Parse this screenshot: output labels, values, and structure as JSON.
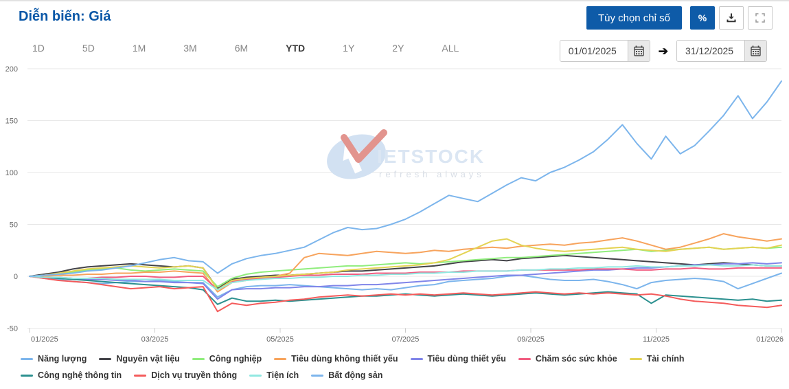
{
  "header": {
    "title": "Diễn biến: Giá",
    "options_button": "Tùy chọn chỉ số",
    "percent_button": "%",
    "icons": {
      "download": "download-icon",
      "fullscreen": "fullscreen-icon",
      "calendar": "calendar-icon",
      "arrow_right_glyph": "➔"
    }
  },
  "ranges": {
    "options": [
      "1D",
      "5D",
      "1M",
      "3M",
      "6M",
      "YTD",
      "1Y",
      "2Y",
      "ALL"
    ],
    "selected": "YTD"
  },
  "date_range": {
    "from": "01/01/2025",
    "to": "31/12/2025"
  },
  "watermark": {
    "brand_text": "IETSTOCK",
    "tagline": "refresh always"
  },
  "colors": {
    "brand_blue": "#0e5ba8",
    "title_blue": "#0a57a7",
    "grid_line": "#e7e7e7",
    "axis_label": "#666666"
  },
  "chart_data": {
    "type": "line",
    "title": "Diễn biến: Giá",
    "x_unit": "weeks since 2025-01-01 (index 0..52, one year)",
    "x_axis": {
      "tick_labels": [
        "01/2025",
        "03/2025",
        "05/2025",
        "07/2025",
        "09/2025",
        "11/2025",
        "01/2026"
      ]
    },
    "y_axis": {
      "min": -50,
      "max": 200,
      "tick_interval": 50,
      "tick_labels": [
        "200",
        "150",
        "100",
        "50",
        "0",
        "-50"
      ]
    },
    "grid": true,
    "legend_position": "bottom",
    "series": [
      {
        "name": "Năng lượng",
        "color": "#7cb5ec",
        "values": [
          0,
          -2,
          -3,
          -5,
          -6,
          -7,
          -6,
          -5,
          -5,
          -4,
          -5,
          -6,
          -6,
          -20,
          -13,
          -10,
          -9,
          -9,
          -8,
          -9,
          -10,
          -11,
          -12,
          -13,
          -12,
          -13,
          -11,
          -9,
          -8,
          -5,
          -4,
          -3,
          -2,
          0,
          1,
          -1,
          -3,
          -4,
          -4,
          -3,
          -5,
          -8,
          -12,
          -6,
          -4,
          -3,
          -2,
          -3,
          -5,
          -12,
          -7,
          -2,
          3
        ]
      },
      {
        "name": "Nguyên vật liệu",
        "color": "#434348",
        "values": [
          0,
          2,
          4,
          7,
          9,
          10,
          11,
          12,
          11,
          10,
          9,
          10,
          8,
          -12,
          -3,
          -1,
          0,
          1,
          1,
          2,
          3,
          4,
          5,
          5,
          6,
          7,
          8,
          9,
          10,
          12,
          14,
          15,
          16,
          15,
          17,
          18,
          19,
          20,
          19,
          18,
          17,
          16,
          15,
          14,
          13,
          12,
          11,
          12,
          13,
          12,
          11,
          10,
          10
        ]
      },
      {
        "name": "Công nghiệp",
        "color": "#90ed7d",
        "values": [
          0,
          1,
          2,
          4,
          6,
          7,
          8,
          6,
          5,
          6,
          7,
          6,
          5,
          -10,
          -2,
          2,
          4,
          5,
          6,
          7,
          8,
          9,
          10,
          10,
          11,
          12,
          13,
          12,
          13,
          14,
          15,
          16,
          17,
          18,
          18,
          19,
          20,
          21,
          22,
          23,
          24,
          25,
          26,
          24,
          25,
          26,
          27,
          28,
          26,
          27,
          28,
          27,
          28
        ]
      },
      {
        "name": "Tiêu dùng không thiết yếu",
        "color": "#f7a35c",
        "values": [
          0,
          0,
          1,
          1,
          2,
          2,
          3,
          3,
          4,
          4,
          5,
          4,
          3,
          -15,
          -6,
          -4,
          -2,
          0,
          3,
          18,
          22,
          21,
          20,
          22,
          24,
          23,
          22,
          23,
          25,
          24,
          26,
          27,
          28,
          27,
          29,
          30,
          31,
          30,
          32,
          33,
          35,
          37,
          34,
          30,
          26,
          28,
          32,
          36,
          41,
          38,
          36,
          34,
          36
        ]
      },
      {
        "name": "Tiêu dùng thiết yếu",
        "color": "#8085e9",
        "values": [
          0,
          -1,
          -2,
          -2,
          -3,
          -3,
          -4,
          -4,
          -5,
          -5,
          -6,
          -6,
          -7,
          -22,
          -13,
          -12,
          -12,
          -11,
          -11,
          -10,
          -10,
          -9,
          -9,
          -8,
          -8,
          -7,
          -6,
          -5,
          -4,
          -3,
          -2,
          -1,
          0,
          1,
          1,
          2,
          3,
          4,
          5,
          6,
          6,
          7,
          8,
          8,
          9,
          10,
          11,
          11,
          12,
          12,
          13,
          12,
          13
        ]
      },
      {
        "name": "Chăm sóc sức khỏe",
        "color": "#f15c80",
        "values": [
          0,
          -1,
          -1,
          -2,
          -2,
          -1,
          -1,
          0,
          0,
          -1,
          -1,
          0,
          0,
          -13,
          -5,
          -3,
          -2,
          -1,
          0,
          1,
          1,
          2,
          2,
          2,
          3,
          3,
          3,
          4,
          4,
          4,
          5,
          5,
          5,
          5,
          6,
          6,
          6,
          6,
          6,
          7,
          7,
          7,
          6,
          6,
          7,
          7,
          8,
          7,
          7,
          8,
          8,
          8,
          8
        ]
      },
      {
        "name": "Tài chính",
        "color": "#e4d354",
        "values": [
          0,
          1,
          3,
          5,
          7,
          8,
          9,
          10,
          9,
          8,
          9,
          10,
          8,
          -13,
          -4,
          -2,
          -1,
          0,
          1,
          2,
          3,
          4,
          6,
          7,
          8,
          9,
          10,
          11,
          13,
          16,
          22,
          28,
          34,
          36,
          30,
          27,
          25,
          24,
          25,
          26,
          27,
          28,
          26,
          25,
          24,
          26,
          27,
          28,
          26,
          27,
          28,
          27,
          30
        ]
      },
      {
        "name": "Công nghệ thông tin",
        "color": "#2b908f",
        "values": [
          0,
          -1,
          -2,
          -3,
          -4,
          -5,
          -6,
          -7,
          -8,
          -9,
          -10,
          -11,
          -13,
          -27,
          -21,
          -24,
          -24,
          -23,
          -24,
          -23,
          -22,
          -21,
          -20,
          -19,
          -19,
          -18,
          -17,
          -18,
          -19,
          -18,
          -17,
          -18,
          -19,
          -18,
          -17,
          -16,
          -17,
          -18,
          -17,
          -16,
          -15,
          -16,
          -17,
          -26,
          -18,
          -19,
          -20,
          -21,
          -22,
          -23,
          -22,
          -24,
          -23
        ]
      },
      {
        "name": "Dịch vụ truyền thông",
        "color": "#f45b5b",
        "values": [
          0,
          -2,
          -4,
          -5,
          -6,
          -8,
          -10,
          -12,
          -11,
          -10,
          -12,
          -11,
          -10,
          -34,
          -26,
          -28,
          -26,
          -25,
          -23,
          -22,
          -20,
          -19,
          -18,
          -19,
          -18,
          -17,
          -18,
          -17,
          -18,
          -17,
          -16,
          -17,
          -18,
          -17,
          -16,
          -15,
          -16,
          -17,
          -16,
          -17,
          -16,
          -17,
          -18,
          -17,
          -19,
          -22,
          -24,
          -25,
          -26,
          -28,
          -29,
          -30,
          -28
        ]
      },
      {
        "name": "Tiện ích",
        "color": "#91e8e1",
        "values": [
          0,
          -1,
          -1,
          -2,
          -2,
          -2,
          -3,
          -3,
          -3,
          -3,
          -4,
          -4,
          -4,
          -13,
          -6,
          -4,
          -3,
          -2,
          -2,
          -1,
          -1,
          0,
          0,
          1,
          1,
          2,
          2,
          3,
          3,
          4,
          4,
          5,
          5,
          5,
          6,
          6,
          7,
          7,
          8,
          8,
          9,
          9,
          10,
          9,
          9,
          10,
          10,
          11,
          10,
          10,
          11,
          10,
          10
        ]
      },
      {
        "name": "Bất động sản",
        "color": "#7cb5ec",
        "values": [
          0,
          1,
          2,
          3,
          5,
          6,
          8,
          10,
          13,
          16,
          18,
          15,
          14,
          3,
          12,
          17,
          20,
          22,
          25,
          28,
          35,
          42,
          47,
          45,
          46,
          50,
          55,
          62,
          70,
          78,
          75,
          72,
          80,
          88,
          95,
          92,
          100,
          105,
          112,
          120,
          132,
          146,
          128,
          113,
          135,
          118,
          126,
          140,
          155,
          174,
          152,
          168,
          188
        ]
      }
    ]
  }
}
